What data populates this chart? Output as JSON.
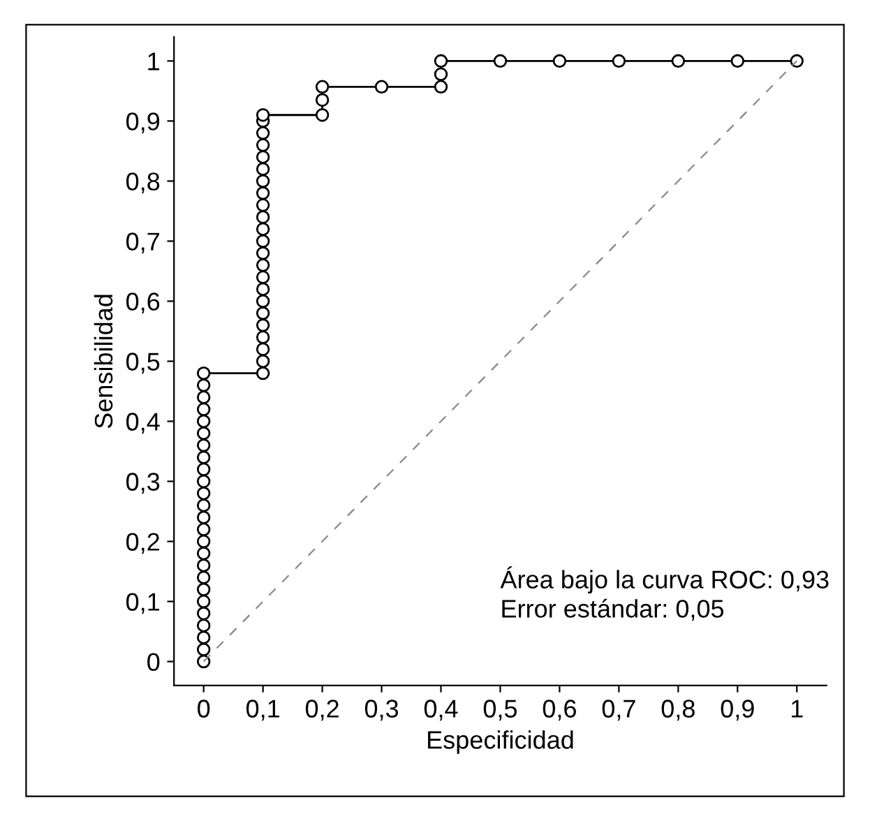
{
  "chart_data": {
    "type": "line",
    "xlabel": "Especificidad",
    "ylabel": "Sensibilidad",
    "xlim": [
      -0.05,
      1.05
    ],
    "ylim": [
      -0.04,
      1.04
    ],
    "xticks": [
      0,
      {
        "value": 0.1,
        "label": "0,1"
      },
      {
        "value": 0.2,
        "label": "0,2"
      },
      {
        "value": 0.3,
        "label": "0,3"
      },
      {
        "value": 0.4,
        "label": "0,4"
      },
      {
        "value": 0.5,
        "label": "0,5"
      },
      {
        "value": 0.6,
        "label": "0,6"
      },
      {
        "value": 0.7,
        "label": "0,7"
      },
      {
        "value": 0.8,
        "label": "0,8"
      },
      {
        "value": 0.9,
        "label": "0,9"
      },
      1
    ],
    "yticks": [
      0,
      {
        "value": 0.1,
        "label": "0,1"
      },
      {
        "value": 0.2,
        "label": "0,2"
      },
      {
        "value": 0.3,
        "label": "0,3"
      },
      {
        "value": 0.4,
        "label": "0,4"
      },
      {
        "value": 0.5,
        "label": "0,5"
      },
      {
        "value": 0.6,
        "label": "0,6"
      },
      {
        "value": 0.7,
        "label": "0,7"
      },
      {
        "value": 0.8,
        "label": "0,8"
      },
      {
        "value": 0.9,
        "label": "0,9"
      },
      1
    ],
    "grid": false,
    "legend": false,
    "series": [
      {
        "color": "#000000",
        "marker": "circle",
        "line_style": "solid",
        "x": [
          0,
          0,
          0,
          0,
          0,
          0,
          0,
          0,
          0,
          0,
          0,
          0,
          0,
          0,
          0,
          0,
          0,
          0,
          0,
          0,
          0,
          0,
          0,
          0,
          0,
          0.1,
          0.1,
          0.1,
          0.1,
          0.1,
          0.1,
          0.1,
          0.1,
          0.1,
          0.1,
          0.1,
          0.1,
          0.1,
          0.1,
          0.1,
          0.1,
          0.1,
          0.1,
          0.1,
          0.1,
          0.1,
          0.1,
          0.1,
          0.2,
          0.2,
          0.2,
          0.3,
          0.4,
          0.4,
          0.4,
          0.5,
          0.6,
          0.7,
          0.8,
          0.9,
          1
        ],
        "values": [
          0,
          0.02,
          0.04,
          0.06,
          0.08,
          0.1,
          0.12,
          0.14,
          0.16,
          0.18,
          0.2,
          0.22,
          0.24,
          0.26,
          0.28,
          0.3,
          0.32,
          0.34,
          0.36,
          0.38,
          0.4,
          0.42,
          0.44,
          0.46,
          0.48,
          0.48,
          0.5,
          0.52,
          0.54,
          0.56,
          0.58,
          0.6,
          0.62,
          0.64,
          0.66,
          0.68,
          0.7,
          0.72,
          0.74,
          0.76,
          0.78,
          0.8,
          0.82,
          0.84,
          0.86,
          0.88,
          0.9,
          0.91,
          0.91,
          0.935,
          0.957,
          0.957,
          0.957,
          0.978,
          1,
          1,
          1,
          1,
          1,
          1,
          1
        ]
      },
      {
        "color": "#888888",
        "marker": "none",
        "line_style": "dashed",
        "x": [
          0,
          1
        ],
        "values": [
          0,
          1
        ]
      }
    ],
    "annotations": [
      "Área bajo la curva ROC: 0,93",
      "Error estándar: 0,05"
    ]
  }
}
